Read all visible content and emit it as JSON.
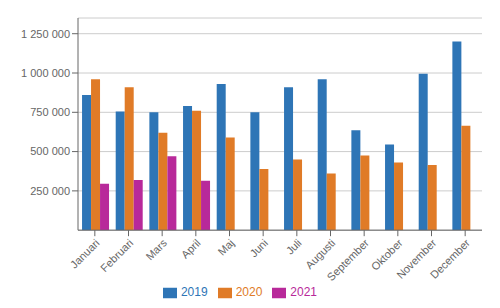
{
  "chart_data": {
    "type": "bar",
    "categories": [
      "Januari",
      "Februari",
      "Mars",
      "April",
      "Maj",
      "Juni",
      "Juli",
      "Augusti",
      "September",
      "Oktober",
      "November",
      "December"
    ],
    "series": [
      {
        "name": "2019",
        "color": "#2e75b6",
        "values": [
          860000,
          755000,
          750000,
          790000,
          930000,
          750000,
          910000,
          960000,
          635000,
          545000,
          995000,
          1200000
        ]
      },
      {
        "name": "2020",
        "color": "#e07b27",
        "values": [
          960000,
          910000,
          620000,
          760000,
          590000,
          390000,
          450000,
          360000,
          475000,
          430000,
          415000,
          665000
        ]
      },
      {
        "name": "2021",
        "color": "#b8299a",
        "values": [
          295000,
          320000,
          470000,
          315000,
          null,
          null,
          null,
          null,
          null,
          null,
          null,
          null
        ]
      }
    ],
    "ylim": [
      0,
      1350000
    ],
    "yticks": [
      {
        "value": 250000,
        "label": "250 000"
      },
      {
        "value": 500000,
        "label": "500 000"
      },
      {
        "value": 750000,
        "label": "750 000"
      },
      {
        "value": 1000000,
        "label": "1 000 000"
      },
      {
        "value": 1250000,
        "label": "1 250 000"
      }
    ],
    "grid": true,
    "legend": "bottom"
  }
}
